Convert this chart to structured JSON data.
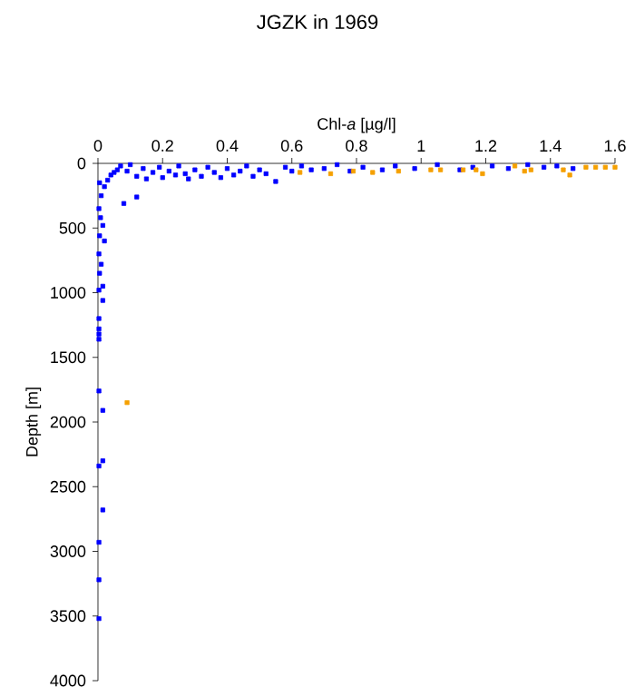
{
  "chart_data": {
    "type": "scatter",
    "title": "JGZK in 1969",
    "xlabel": "Chl-*a* [µg/l]",
    "ylabel": "Depth [m]",
    "xlim": [
      0,
      1.6
    ],
    "xticks": [
      0,
      0.2,
      0.4,
      0.6,
      0.8,
      1,
      1.2,
      1.4,
      1.6
    ],
    "ylim": [
      4000,
      0
    ],
    "yticks": [
      0,
      500,
      1000,
      1500,
      2000,
      2500,
      3000,
      3500,
      4000
    ],
    "marker": "square",
    "grid": false,
    "series": [
      {
        "color": "#0000ff",
        "x": [
          0.005,
          0.01,
          0.003,
          0.008,
          0.015,
          0.005,
          0.02,
          0.003,
          0.01,
          0.005,
          0.015,
          0.02,
          0.03,
          0.04,
          0.06,
          0.05,
          0.08,
          0.12,
          0.07,
          0.09,
          0.1,
          0.12,
          0.14,
          0.15,
          0.17,
          0.19,
          0.2,
          0.22,
          0.24,
          0.25,
          0.27,
          0.28,
          0.3,
          0.32,
          0.34,
          0.36,
          0.38,
          0.4,
          0.42,
          0.44,
          0.46,
          0.48,
          0.5,
          0.52,
          0.55,
          0.58,
          0.6,
          0.63,
          0.66,
          0.7,
          0.74,
          0.78,
          0.82,
          0.88,
          0.92,
          0.98,
          1.05,
          1.12,
          1.16,
          1.22,
          1.27,
          1.33,
          1.38,
          1.42,
          1.47,
          0.003,
          0.015,
          0.003,
          0.003,
          0.003,
          0.003,
          0.003,
          0.015,
          0.015,
          0.003,
          0.015,
          0.003,
          0.003,
          0.003
        ],
        "values": [
          150,
          250,
          350,
          420,
          480,
          560,
          600,
          700,
          780,
          850,
          950,
          180,
          130,
          90,
          50,
          70,
          310,
          260,
          20,
          60,
          10,
          100,
          40,
          120,
          70,
          30,
          110,
          60,
          90,
          20,
          80,
          120,
          50,
          100,
          30,
          70,
          110,
          40,
          90,
          60,
          20,
          100,
          50,
          80,
          140,
          30,
          60,
          20,
          50,
          40,
          10,
          60,
          30,
          50,
          20,
          40,
          10,
          50,
          30,
          20,
          40,
          10,
          30,
          20,
          40,
          980,
          1060,
          1200,
          1280,
          1320,
          1360,
          1760,
          1910,
          2300,
          2340,
          2680,
          2930,
          3220,
          3520
        ]
      },
      {
        "color": "#f5a000",
        "x": [
          0.625,
          0.72,
          0.79,
          0.85,
          0.93,
          1.03,
          1.06,
          1.13,
          1.17,
          1.19,
          1.29,
          1.32,
          1.34,
          1.44,
          1.46,
          1.51,
          1.54,
          1.57,
          1.6,
          0.09
        ],
        "values": [
          70,
          80,
          60,
          70,
          60,
          50,
          50,
          50,
          50,
          80,
          20,
          60,
          50,
          50,
          90,
          30,
          30,
          30,
          30,
          1850
        ]
      }
    ]
  }
}
